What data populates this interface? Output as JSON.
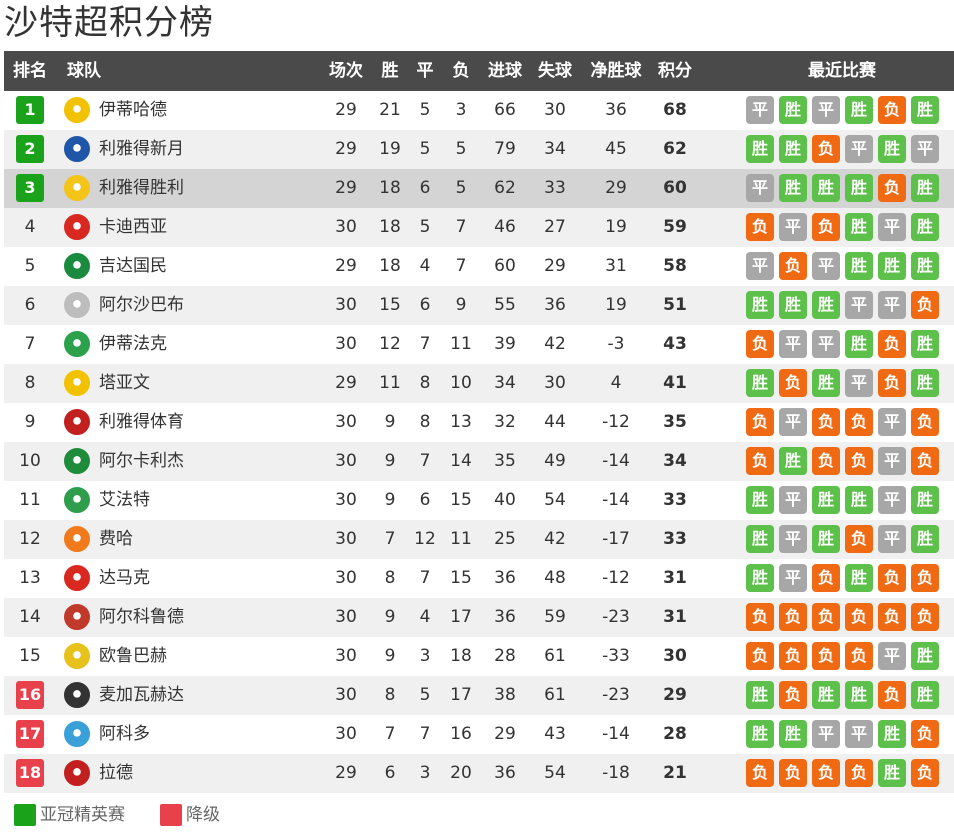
{
  "title": "沙特超积分榜",
  "colors": {
    "header_bg": "#4a4a4a",
    "acl_green": "#1aa31a",
    "relegation_red": "#e8414b",
    "win": "#5cc04a",
    "draw": "#a7a7a7",
    "loss": "#f06a14"
  },
  "header": {
    "rank": "排名",
    "team": "球队",
    "played": "场次",
    "win": "胜",
    "draw": "平",
    "loss": "负",
    "gf": "进球",
    "ga": "失球",
    "gd": "净胜球",
    "pts": "积分",
    "form": "最近比赛"
  },
  "form_labels": {
    "W": "胜",
    "D": "平",
    "L": "负"
  },
  "rows": [
    {
      "rank": "1",
      "zone": "acl",
      "logo": "ittihad-logo",
      "logo_color": "#f2c200",
      "team": "伊蒂哈德",
      "played": "29",
      "win": "21",
      "draw": "5",
      "loss": "3",
      "gf": "66",
      "ga": "30",
      "gd": "36",
      "pts": "68",
      "form": [
        "D",
        "W",
        "D",
        "W",
        "L",
        "W"
      ]
    },
    {
      "rank": "2",
      "zone": "acl",
      "logo": "hilal-logo",
      "logo_color": "#1f56a8",
      "team": "利雅得新月",
      "played": "29",
      "win": "19",
      "draw": "5",
      "loss": "5",
      "gf": "79",
      "ga": "34",
      "gd": "45",
      "pts": "62",
      "form": [
        "W",
        "W",
        "L",
        "D",
        "W",
        "D"
      ]
    },
    {
      "rank": "3",
      "zone": "acl",
      "logo": "nassr-logo",
      "logo_color": "#f5c419",
      "team": "利雅得胜利",
      "played": "29",
      "win": "18",
      "draw": "6",
      "loss": "5",
      "gf": "62",
      "ga": "33",
      "gd": "29",
      "pts": "60",
      "form": [
        "D",
        "W",
        "W",
        "W",
        "L",
        "W"
      ],
      "highlight": true
    },
    {
      "rank": "4",
      "zone": "",
      "logo": "qadsiah-logo",
      "logo_color": "#d8281f",
      "team": "卡迪西亚",
      "played": "30",
      "win": "18",
      "draw": "5",
      "loss": "7",
      "gf": "46",
      "ga": "27",
      "gd": "19",
      "pts": "59",
      "form": [
        "L",
        "D",
        "L",
        "W",
        "D",
        "W"
      ]
    },
    {
      "rank": "5",
      "zone": "",
      "logo": "ahli-logo",
      "logo_color": "#1a8a3e",
      "team": "吉达国民",
      "played": "29",
      "win": "18",
      "draw": "4",
      "loss": "7",
      "gf": "60",
      "ga": "29",
      "gd": "31",
      "pts": "58",
      "form": [
        "D",
        "L",
        "D",
        "W",
        "W",
        "W"
      ]
    },
    {
      "rank": "6",
      "zone": "",
      "logo": "shabab-logo",
      "logo_color": "#bdbdbd",
      "team": "阿尔沙巴布",
      "played": "30",
      "win": "15",
      "draw": "6",
      "loss": "9",
      "gf": "55",
      "ga": "36",
      "gd": "19",
      "pts": "51",
      "form": [
        "W",
        "W",
        "W",
        "D",
        "D",
        "L"
      ]
    },
    {
      "rank": "7",
      "zone": "",
      "logo": "ettifaq-logo",
      "logo_color": "#2aa14a",
      "team": "伊蒂法克",
      "played": "30",
      "win": "12",
      "draw": "7",
      "loss": "11",
      "gf": "39",
      "ga": "42",
      "gd": "-3",
      "pts": "43",
      "form": [
        "L",
        "D",
        "D",
        "W",
        "L",
        "W"
      ]
    },
    {
      "rank": "8",
      "zone": "",
      "logo": "taawoun-logo",
      "logo_color": "#f2c200",
      "team": "塔亚文",
      "played": "29",
      "win": "11",
      "draw": "8",
      "loss": "10",
      "gf": "34",
      "ga": "30",
      "gd": "4",
      "pts": "41",
      "form": [
        "W",
        "L",
        "W",
        "D",
        "L",
        "W"
      ]
    },
    {
      "rank": "9",
      "zone": "",
      "logo": "riyadh-logo",
      "logo_color": "#c21f1f",
      "team": "利雅得体育",
      "played": "30",
      "win": "9",
      "draw": "8",
      "loss": "13",
      "gf": "32",
      "ga": "44",
      "gd": "-12",
      "pts": "35",
      "form": [
        "L",
        "D",
        "L",
        "L",
        "D",
        "L"
      ]
    },
    {
      "rank": "10",
      "zone": "",
      "logo": "khaleej-logo",
      "logo_color": "#1f8c3b",
      "team": "阿尔卡利杰",
      "played": "30",
      "win": "9",
      "draw": "7",
      "loss": "14",
      "gf": "35",
      "ga": "49",
      "gd": "-14",
      "pts": "34",
      "form": [
        "L",
        "W",
        "L",
        "L",
        "D",
        "L"
      ]
    },
    {
      "rank": "11",
      "zone": "",
      "logo": "fateh-logo",
      "logo_color": "#2e9e4c",
      "team": "艾法特",
      "played": "30",
      "win": "9",
      "draw": "6",
      "loss": "15",
      "gf": "40",
      "ga": "54",
      "gd": "-14",
      "pts": "33",
      "form": [
        "W",
        "D",
        "W",
        "W",
        "D",
        "W"
      ]
    },
    {
      "rank": "12",
      "zone": "",
      "logo": "feiha-logo",
      "logo_color": "#f07a1c",
      "team": "费哈",
      "played": "30",
      "win": "7",
      "draw": "12",
      "loss": "11",
      "gf": "25",
      "ga": "42",
      "gd": "-17",
      "pts": "33",
      "form": [
        "W",
        "D",
        "W",
        "L",
        "D",
        "W"
      ]
    },
    {
      "rank": "13",
      "zone": "",
      "logo": "damac-logo",
      "logo_color": "#d8281f",
      "team": "达马克",
      "played": "30",
      "win": "8",
      "draw": "7",
      "loss": "15",
      "gf": "36",
      "ga": "48",
      "gd": "-12",
      "pts": "31",
      "form": [
        "W",
        "D",
        "L",
        "W",
        "L",
        "L"
      ]
    },
    {
      "rank": "14",
      "zone": "",
      "logo": "orobah-logo",
      "logo_color": "#c0392b",
      "team": "阿尔科鲁德",
      "played": "30",
      "win": "9",
      "draw": "4",
      "loss": "17",
      "gf": "36",
      "ga": "59",
      "gd": "-23",
      "pts": "31",
      "form": [
        "L",
        "L",
        "L",
        "L",
        "L",
        "L"
      ]
    },
    {
      "rank": "15",
      "zone": "",
      "logo": "okhdood-logo",
      "logo_color": "#e6c21a",
      "team": "欧鲁巴赫",
      "played": "30",
      "win": "9",
      "draw": "3",
      "loss": "18",
      "gf": "28",
      "ga": "61",
      "gd": "-33",
      "pts": "30",
      "form": [
        "L",
        "L",
        "L",
        "L",
        "D",
        "W"
      ]
    },
    {
      "rank": "16",
      "zone": "rel",
      "logo": "wehda-logo",
      "logo_color": "#333333",
      "team": "麦加瓦赫达",
      "played": "30",
      "win": "8",
      "draw": "5",
      "loss": "17",
      "gf": "38",
      "ga": "61",
      "gd": "-23",
      "pts": "29",
      "form": [
        "W",
        "L",
        "W",
        "W",
        "L",
        "W"
      ]
    },
    {
      "rank": "17",
      "zone": "rel",
      "logo": "akhdoud-logo",
      "logo_color": "#3aa0d8",
      "team": "阿科多",
      "played": "30",
      "win": "7",
      "draw": "7",
      "loss": "16",
      "gf": "29",
      "ga": "43",
      "gd": "-14",
      "pts": "28",
      "form": [
        "W",
        "W",
        "D",
        "D",
        "W",
        "L"
      ]
    },
    {
      "rank": "18",
      "zone": "rel",
      "logo": "raed-logo",
      "logo_color": "#c21f1f",
      "team": "拉德",
      "played": "29",
      "win": "6",
      "draw": "3",
      "loss": "20",
      "gf": "36",
      "ga": "54",
      "gd": "-18",
      "pts": "21",
      "form": [
        "L",
        "L",
        "L",
        "L",
        "W",
        "L"
      ]
    }
  ],
  "legend": [
    {
      "label": "亚冠精英赛",
      "color": "#1aa31a"
    },
    {
      "label": "降级",
      "color": "#e8414b"
    }
  ]
}
